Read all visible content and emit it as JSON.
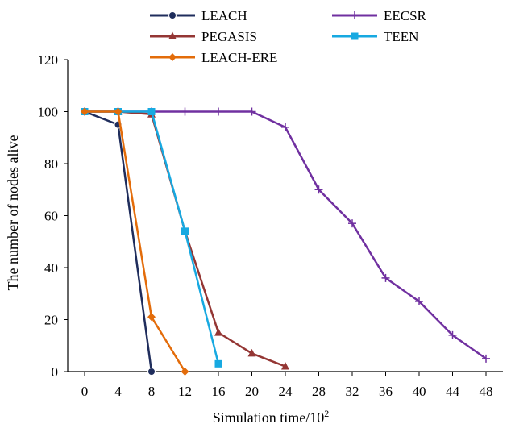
{
  "chart_data": {
    "type": "line",
    "xlabel": "Simulation time/10",
    "xlabel_superscript": "2",
    "ylabel": "The number of nodes alive",
    "x_ticks": [
      0,
      4,
      8,
      12,
      16,
      20,
      24,
      28,
      32,
      36,
      40,
      44,
      48
    ],
    "y_ticks": [
      0,
      20,
      40,
      60,
      80,
      100,
      120
    ],
    "xlim": [
      0,
      48
    ],
    "ylim": [
      0,
      120
    ],
    "grid": false,
    "legend_position": "top",
    "series": [
      {
        "name": "LEACH",
        "color": "#1f2d5c",
        "marker": "circle",
        "x": [
          0,
          4,
          8
        ],
        "y": [
          100,
          95,
          0
        ]
      },
      {
        "name": "EECSR",
        "color": "#7030a0",
        "marker": "plus",
        "x": [
          0,
          4,
          8,
          12,
          16,
          20,
          24,
          28,
          32,
          36,
          40,
          44,
          48
        ],
        "y": [
          100,
          100,
          100,
          100,
          100,
          100,
          94,
          70,
          57,
          36,
          27,
          14,
          5
        ]
      },
      {
        "name": "PEGASIS",
        "color": "#943634",
        "marker": "triangle",
        "x": [
          0,
          4,
          8,
          12,
          16,
          20,
          24
        ],
        "y": [
          100,
          100,
          99,
          54,
          15,
          7,
          2
        ]
      },
      {
        "name": "TEEN",
        "color": "#17a9e1",
        "marker": "square",
        "x": [
          0,
          4,
          8,
          12,
          16
        ],
        "y": [
          100,
          100,
          100,
          54,
          3
        ]
      },
      {
        "name": "LEACH-ERE",
        "color": "#e36c0a",
        "marker": "diamond",
        "x": [
          0,
          4,
          8,
          12
        ],
        "y": [
          100,
          100,
          21,
          0
        ]
      }
    ]
  }
}
